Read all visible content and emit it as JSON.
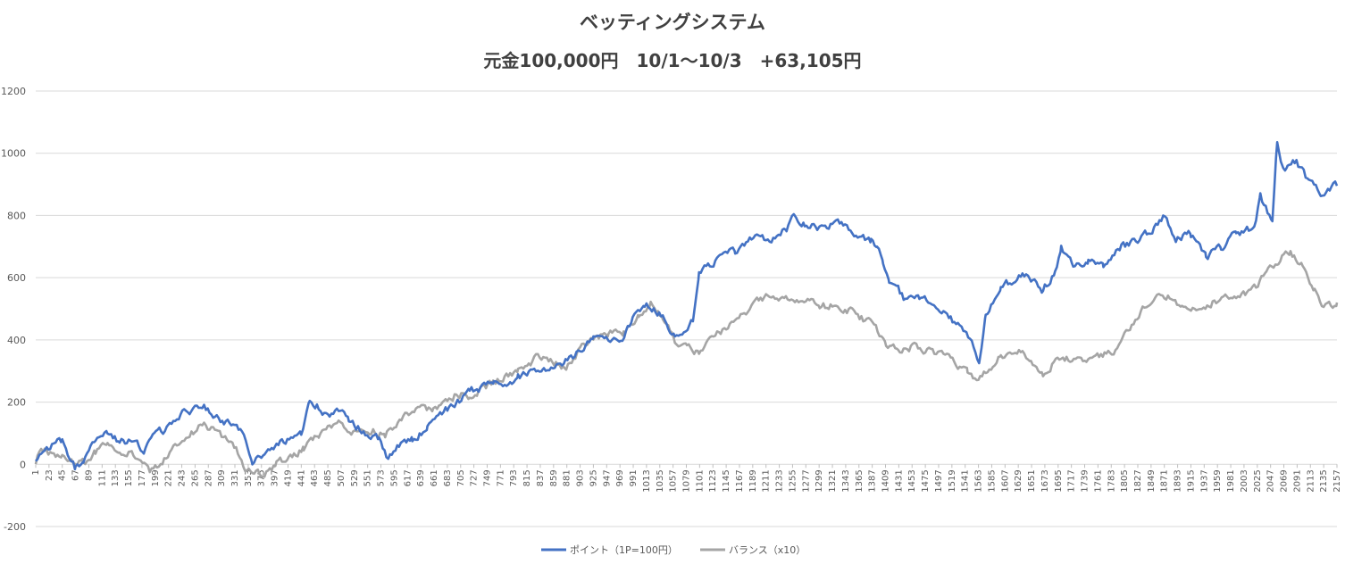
{
  "chart_data": {
    "type": "line",
    "title": "ベッティングシステム",
    "subtitle": "元金100,000円　10/1〜10/3　+63,105円",
    "xlabel": "",
    "ylabel": "",
    "ylim": [
      -200,
      1200
    ],
    "yticks": [
      -200,
      0,
      200,
      400,
      600,
      800,
      1000,
      1200
    ],
    "xlim": [
      1,
      2157
    ],
    "xtick_step": 22,
    "grid": true,
    "legend_position": "bottom",
    "series": [
      {
        "name": "ポイント（1P=100円）",
        "color": "#4472C4",
        "x": [
          1,
          10,
          25,
          45,
          67,
          80,
          100,
          120,
          140,
          160,
          180,
          200,
          220,
          250,
          280,
          295,
          310,
          340,
          360,
          380,
          400,
          430,
          441,
          455,
          470,
          485,
          500,
          520,
          550,
          570,
          585,
          600,
          625,
          650,
          680,
          700,
          720,
          760,
          800,
          840,
          870,
          900,
          925,
          950,
          970,
          990,
          1010,
          1025,
          1040,
          1060,
          1075,
          1090,
          1100,
          1115,
          1135,
          1160,
          1190,
          1220,
          1245,
          1258,
          1275,
          1300,
          1330,
          1360,
          1385,
          1395,
          1405,
          1415,
          1430,
          1445,
          1465,
          1490,
          1520,
          1540,
          1552,
          1565,
          1575,
          1600,
          1630,
          1650,
          1670,
          1690,
          1700,
          1720,
          1745,
          1770,
          1800,
          1830,
          1860,
          1872,
          1890,
          1915,
          1940,
          1965,
          1990,
          2020,
          2030,
          2050,
          2058,
          2065,
          2075,
          2090,
          2110,
          2130,
          2157
        ],
        "y": [
          5,
          45,
          60,
          75,
          -15,
          20,
          70,
          95,
          75,
          70,
          45,
          100,
          115,
          170,
          195,
          150,
          140,
          110,
          5,
          25,
          60,
          90,
          100,
          210,
          185,
          145,
          185,
          140,
          95,
          85,
          20,
          55,
          80,
          120,
          175,
          195,
          235,
          255,
          280,
          300,
          320,
          360,
          420,
          410,
          385,
          465,
          520,
          505,
          480,
          410,
          430,
          470,
          610,
          640,
          665,
          690,
          730,
          720,
          760,
          800,
          770,
          760,
          780,
          730,
          720,
          690,
          650,
          590,
          560,
          520,
          530,
          520,
          460,
          420,
          390,
          330,
          470,
          560,
          610,
          600,
          560,
          620,
          700,
          640,
          660,
          640,
          700,
          720,
          770,
          800,
          730,
          740,
          660,
          700,
          740,
          760,
          860,
          780,
          1040,
          960,
          950,
          975,
          910,
          880,
          895
        ]
      },
      {
        "name": "バランス（x10）",
        "color": "#A5A5A5",
        "x": [
          1,
          10,
          25,
          45,
          67,
          80,
          100,
          120,
          140,
          160,
          175,
          190,
          205,
          220,
          250,
          280,
          300,
          330,
          345,
          360,
          380,
          400,
          420,
          445,
          470,
          485,
          500,
          530,
          560,
          580,
          610,
          640,
          660,
          680,
          700,
          720,
          760,
          800,
          830,
          860,
          880,
          900,
          925,
          950,
          975,
          1000,
          1020,
          1040,
          1060,
          1080,
          1100,
          1130,
          1160,
          1190,
          1220,
          1250,
          1280,
          1300,
          1330,
          1360,
          1390,
          1410,
          1430,
          1460,
          1490,
          1520,
          1545,
          1560,
          1575,
          1600,
          1630,
          1650,
          1670,
          1700,
          1730,
          1760,
          1790,
          1820,
          1850,
          1880,
          1900,
          1930,
          1960,
          1990,
          2020,
          2040,
          2060,
          2080,
          2100,
          2120,
          2135,
          2157
        ],
        "y": [
          10,
          50,
          35,
          20,
          0,
          5,
          40,
          65,
          50,
          35,
          0,
          -20,
          -5,
          25,
          90,
          130,
          100,
          60,
          0,
          -35,
          -30,
          5,
          20,
          50,
          100,
          120,
          140,
          100,
          110,
          95,
          145,
          180,
          170,
          200,
          230,
          220,
          260,
          300,
          340,
          330,
          315,
          360,
          410,
          420,
          420,
          480,
          520,
          460,
          400,
          375,
          360,
          420,
          470,
          510,
          545,
          540,
          530,
          500,
          520,
          480,
          445,
          390,
          370,
          380,
          360,
          330,
          290,
          265,
          300,
          350,
          370,
          320,
          290,
          350,
          330,
          340,
          370,
          460,
          530,
          540,
          510,
          500,
          530,
          540,
          560,
          620,
          660,
          680,
          640,
          560,
          510,
          520
        ]
      }
    ]
  }
}
